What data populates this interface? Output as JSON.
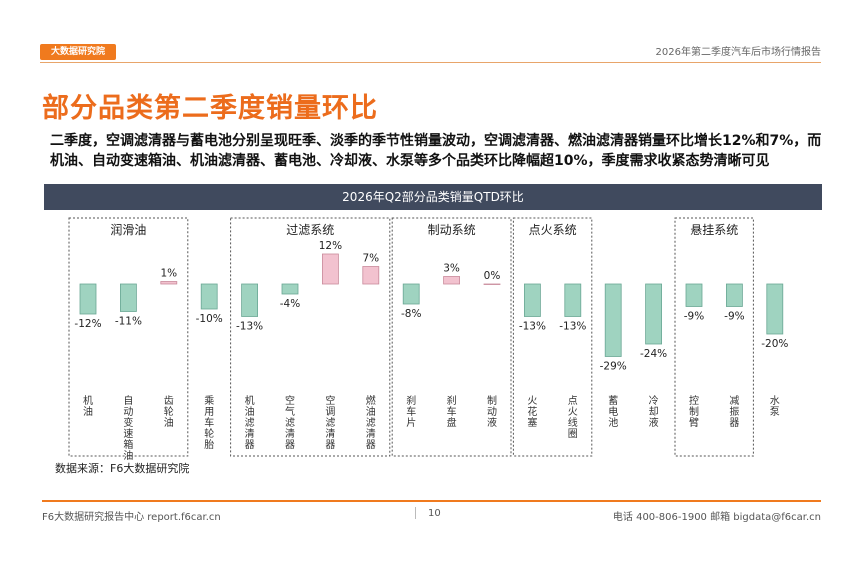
{
  "header": {
    "logo": "大数据研究院",
    "report_title": "2026年第二季度汽车后市场行情报告"
  },
  "page_title": "部分品类第二季度销量环比",
  "summary": "二季度，空调滤清器与蓄电池分别呈现旺季、淡季的季节性销量波动，空调滤清器、燃油滤清器销量环比增长12%和7%，而机油、自动变速箱油、机油滤清器、蓄电池、冷却液、水泵等多个品类环比降幅超10%，季度需求收紧态势清晰可见",
  "chart_header": "2026年Q2部分品类销量QTD环比",
  "source": "数据来源：F6大数据研究院",
  "footer": {
    "left": "F6大数据研究报告中心 report.f6car.cn",
    "page": "10",
    "right": "电话 400-806-1900  邮箱 bigdata@f6car.cn"
  },
  "colors": {
    "negative": "#9fd3c0",
    "positive": "#f2c2cf",
    "accent": "#ec6c1c"
  },
  "chart_data": {
    "type": "bar",
    "title": "2026年Q2部分品类销量QTD环比",
    "categories": [
      "机油",
      "自动变速箱油",
      "齿轮油",
      "乘用车轮胎",
      "机油滤清器",
      "空气滤清器",
      "空调滤清器",
      "燃油滤清器",
      "刹车片",
      "刹车盘",
      "制动液",
      "火花塞",
      "点火线圈",
      "蓄电池",
      "冷却液",
      "控制臂",
      "减振器",
      "水泵"
    ],
    "values": [
      -12,
      -11,
      1,
      -10,
      -13,
      -4,
      12,
      7,
      -8,
      3,
      0,
      -13,
      -13,
      -29,
      -24,
      -9,
      -9,
      -20
    ],
    "unit": "%",
    "groups": [
      {
        "name": "润滑油",
        "from": 0,
        "to": 2
      },
      {
        "name": "过滤系统",
        "from": 4,
        "to": 7
      },
      {
        "name": "制动系统",
        "from": 8,
        "to": 10
      },
      {
        "name": "点火系统",
        "from": 11,
        "to": 12
      },
      {
        "name": "悬挂系统",
        "from": 15,
        "to": 16
      }
    ],
    "ylim": [
      -32,
      14
    ]
  }
}
